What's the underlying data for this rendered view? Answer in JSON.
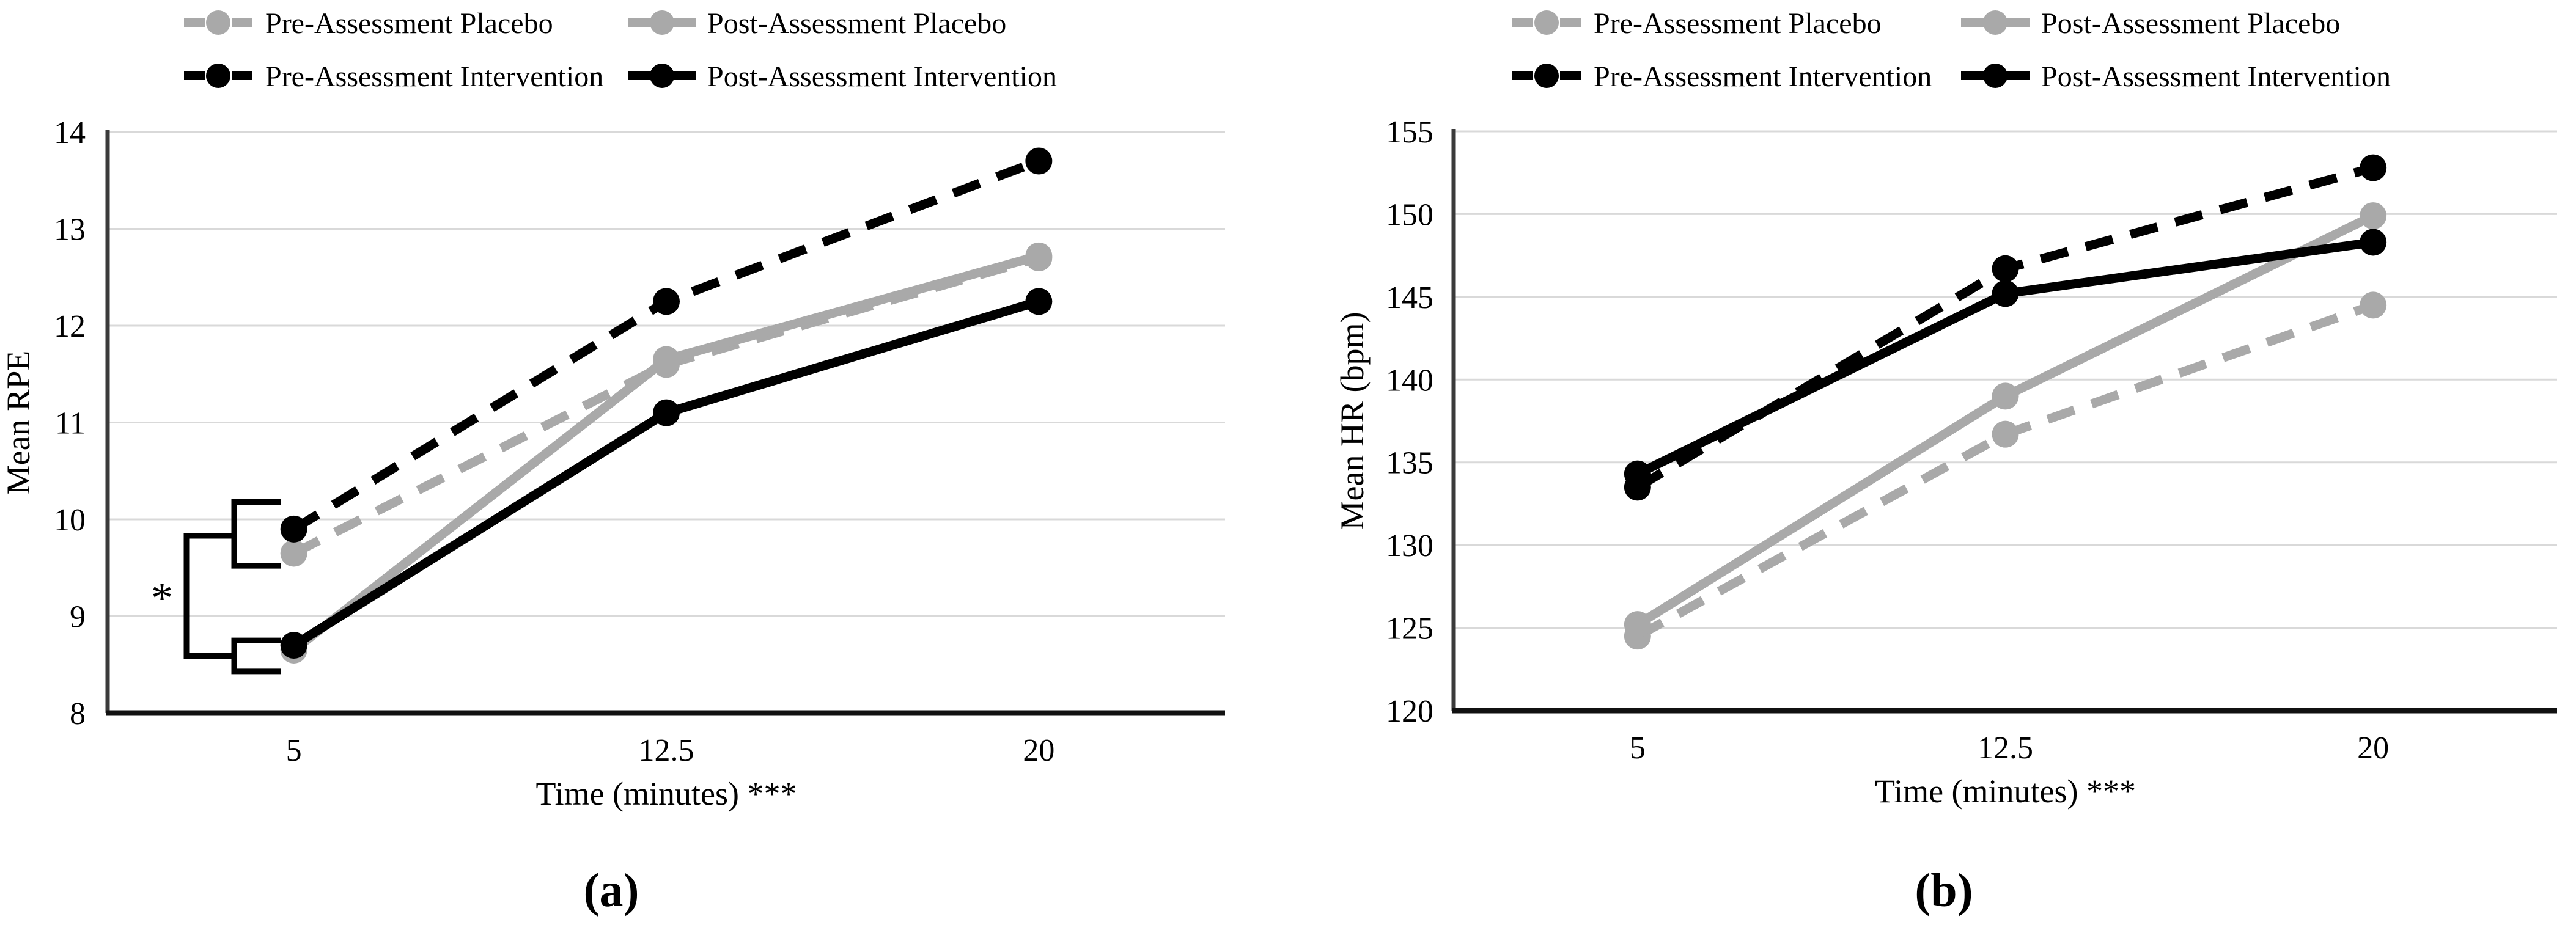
{
  "figure": {
    "background": "#ffffff",
    "captions": {
      "a": "(a)",
      "b": "(b)"
    },
    "colors": {
      "black_series": "#000000",
      "gray_series": "#a9a9a9",
      "gridline": "#d9d9d9",
      "y_axis_line": "#3a3a3a",
      "x_axis_line": "#111111",
      "text": "#000000"
    }
  },
  "chart_data": [
    {
      "id": "a",
      "type": "line",
      "title": "",
      "xlabel": "Time (minutes) ***",
      "ylabel": "Mean RPE",
      "categories": [
        "5",
        "12.5",
        "20"
      ],
      "ylim": [
        8,
        14
      ],
      "yticks": [
        8,
        9,
        10,
        11,
        12,
        13,
        14
      ],
      "grid": true,
      "legend_position": "top",
      "series": [
        {
          "name": "Pre-Assessment Placebo",
          "color": "gray",
          "dash": true,
          "values": [
            9.65,
            11.6,
            12.7
          ]
        },
        {
          "name": "Post-Assessment Placebo",
          "color": "gray",
          "dash": false,
          "values": [
            8.65,
            11.65,
            12.72
          ]
        },
        {
          "name": "Pre-Assessment Intervention",
          "color": "black",
          "dash": true,
          "values": [
            9.9,
            12.25,
            13.7
          ]
        },
        {
          "name": "Post-Assessment Intervention",
          "color": "black",
          "dash": false,
          "values": [
            8.7,
            11.1,
            12.25
          ]
        }
      ],
      "significance": {
        "label": "*",
        "note": "bracket at 5 min comparing pre-assessment pair vs post-assessment pair",
        "outer_span": {
          "from": 8.59,
          "to": 9.83
        },
        "group_spans": [
          {
            "from": 9.52,
            "to": 10.18
          },
          {
            "from": 8.43,
            "to": 8.75
          }
        ],
        "label_value": 9.25
      }
    },
    {
      "id": "b",
      "type": "line",
      "title": "",
      "xlabel": "Time (minutes) ***",
      "ylabel": "Mean HR (bpm)",
      "categories": [
        "5",
        "12.5",
        "20"
      ],
      "ylim": [
        120,
        155
      ],
      "yticks": [
        120,
        125,
        130,
        135,
        140,
        145,
        150,
        155
      ],
      "grid": true,
      "legend_position": "top",
      "series": [
        {
          "name": "Pre-Assessment Placebo",
          "color": "gray",
          "dash": true,
          "values": [
            124.5,
            136.7,
            144.5
          ]
        },
        {
          "name": "Post-Assessment Placebo",
          "color": "gray",
          "dash": false,
          "values": [
            125.2,
            139.0,
            149.9
          ]
        },
        {
          "name": "Pre-Assessment Intervention",
          "color": "black",
          "dash": true,
          "values": [
            133.5,
            146.7,
            152.8
          ]
        },
        {
          "name": "Post-Assessment Intervention",
          "color": "black",
          "dash": false,
          "values": [
            134.3,
            145.2,
            148.3
          ]
        }
      ],
      "significance": null
    }
  ]
}
